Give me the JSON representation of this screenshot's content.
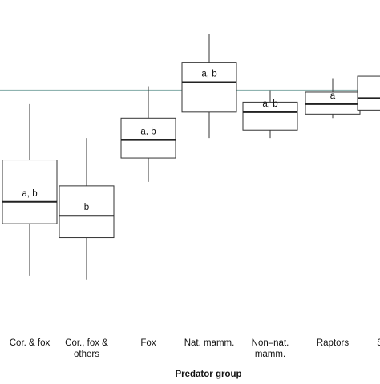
{
  "chart_data": {
    "type": "box",
    "title": "",
    "xlabel": "Predator group",
    "ylabel": "",
    "categories": [
      [
        "Cor. & fox"
      ],
      [
        "Cor., fox &",
        "others"
      ],
      [
        "Fox"
      ],
      [
        "Nat. mamm."
      ],
      [
        "Non–nat.",
        "mamm."
      ],
      [
        "Raptors"
      ],
      [
        "Sku"
      ]
    ],
    "boxes": [
      {
        "whisker_low": 0.05,
        "q1": 0.31,
        "median": 0.42,
        "q3": 0.63,
        "whisker_high": 0.91,
        "group_label": "a, b"
      },
      {
        "whisker_low": 0.03,
        "q1": 0.24,
        "median": 0.35,
        "q3": 0.5,
        "whisker_high": 0.74,
        "group_label": "b"
      },
      {
        "whisker_low": 0.52,
        "q1": 0.64,
        "median": 0.73,
        "q3": 0.84,
        "whisker_high": 1.0,
        "group_label": "a, b"
      },
      {
        "whisker_low": 0.74,
        "q1": 0.87,
        "median": 1.02,
        "q3": 1.12,
        "whisker_high": 1.26,
        "group_label": "a, b"
      },
      {
        "whisker_low": 0.74,
        "q1": 0.78,
        "median": 0.87,
        "q3": 0.92,
        "whisker_high": 0.98,
        "group_label": "a, b"
      },
      {
        "whisker_low": 0.84,
        "q1": 0.86,
        "median": 0.91,
        "q3": 0.97,
        "whisker_high": 1.04,
        "group_label": "a"
      },
      {
        "whisker_low": 0.85,
        "q1": 0.88,
        "median": 0.94,
        "q3": 1.05,
        "whisker_high": 1.11,
        "group_label": ""
      }
    ],
    "reference_line": {
      "y": 0.98,
      "color": "#8fb3b0"
    },
    "ylim": [
      -0.2,
      1.4
    ],
    "grid": false,
    "colors": {
      "box_stroke": "#333333",
      "median": "#222222",
      "text": "#111111"
    }
  }
}
